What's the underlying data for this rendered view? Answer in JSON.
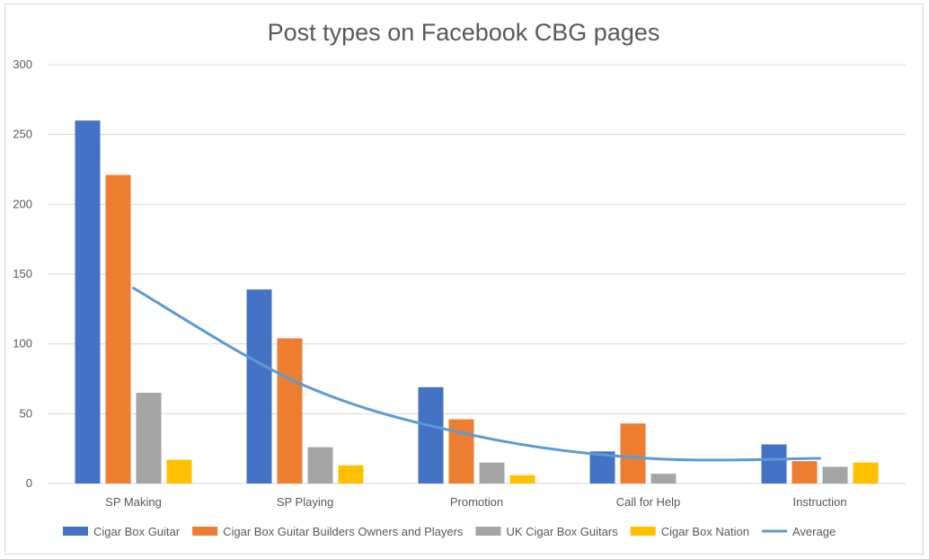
{
  "chart_data": {
    "type": "bar",
    "title": "Post types on Facebook CBG pages",
    "categories": [
      "SP Making",
      "SP Playing",
      "Promotion",
      "Call for Help",
      "Instruction"
    ],
    "series": [
      {
        "name": "Cigar Box Guitar",
        "type": "bar",
        "color": "#4472c4",
        "values": [
          260,
          139,
          69,
          23,
          28
        ]
      },
      {
        "name": "Cigar Box Guitar Builders Owners and Players",
        "type": "bar",
        "color": "#ed7d31",
        "values": [
          221,
          104,
          46,
          43,
          16
        ]
      },
      {
        "name": "UK Cigar Box Guitars",
        "type": "bar",
        "color": "#a5a5a5",
        "values": [
          65,
          26,
          15,
          7,
          12
        ]
      },
      {
        "name": "Cigar Box Nation",
        "type": "bar",
        "color": "#ffc000",
        "values": [
          17,
          13,
          6,
          0,
          15
        ]
      },
      {
        "name": "Average",
        "type": "line",
        "color": "#5b9bd5",
        "values": [
          140,
          70,
          34,
          18,
          18
        ]
      }
    ],
    "ylim": [
      0,
      300
    ],
    "yticks": [
      0,
      50,
      100,
      150,
      200,
      250,
      300
    ],
    "grid": true,
    "legend_position": "bottom"
  }
}
